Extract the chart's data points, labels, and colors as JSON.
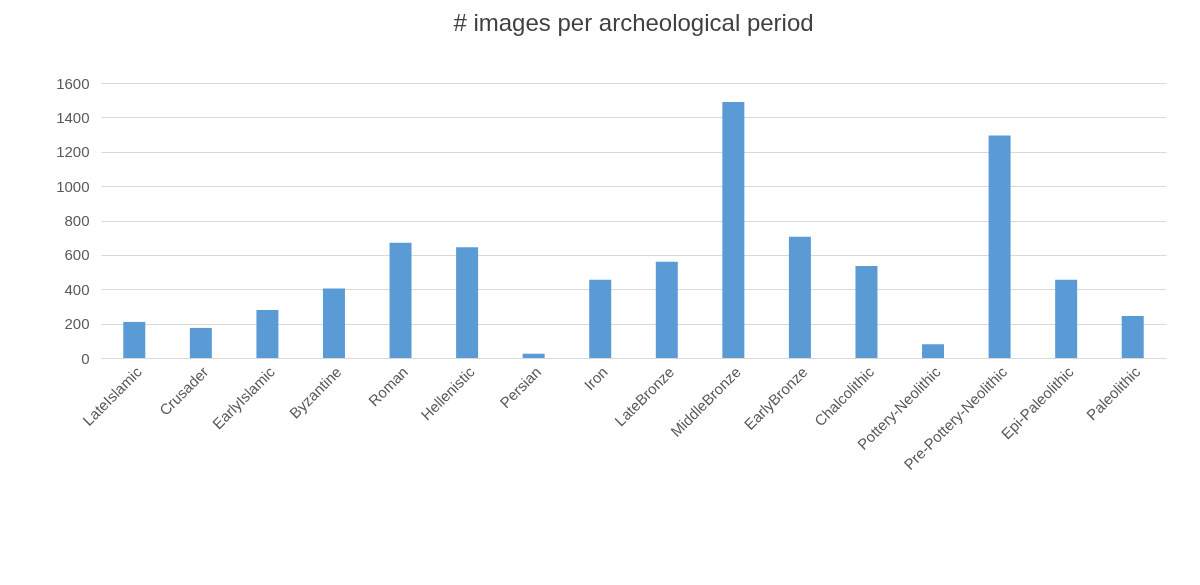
{
  "chart_data": {
    "type": "bar",
    "title": "# images per archeological period",
    "categories": [
      "LateIslamic",
      "Crusader",
      "EarlyIslamic",
      "Byzantine",
      "Roman",
      "Hellenistic",
      "Persian",
      "Iron",
      "LateBronze",
      "MiddleBronze",
      "EarlyBronze",
      "Chalcolithic",
      "Pottery-Neolithic",
      "Pre-Pottery-Neolithic",
      "Epi-Paleolithic",
      "Paleolithic"
    ],
    "values": [
      210,
      175,
      280,
      405,
      670,
      645,
      25,
      455,
      560,
      1490,
      705,
      535,
      80,
      1295,
      455,
      245
    ],
    "color": "#5b9bd5",
    "ylim": [
      0,
      1600
    ],
    "yticks": [
      0,
      200,
      400,
      600,
      800,
      1000,
      1200,
      1400,
      1600
    ],
    "grid": "y"
  }
}
